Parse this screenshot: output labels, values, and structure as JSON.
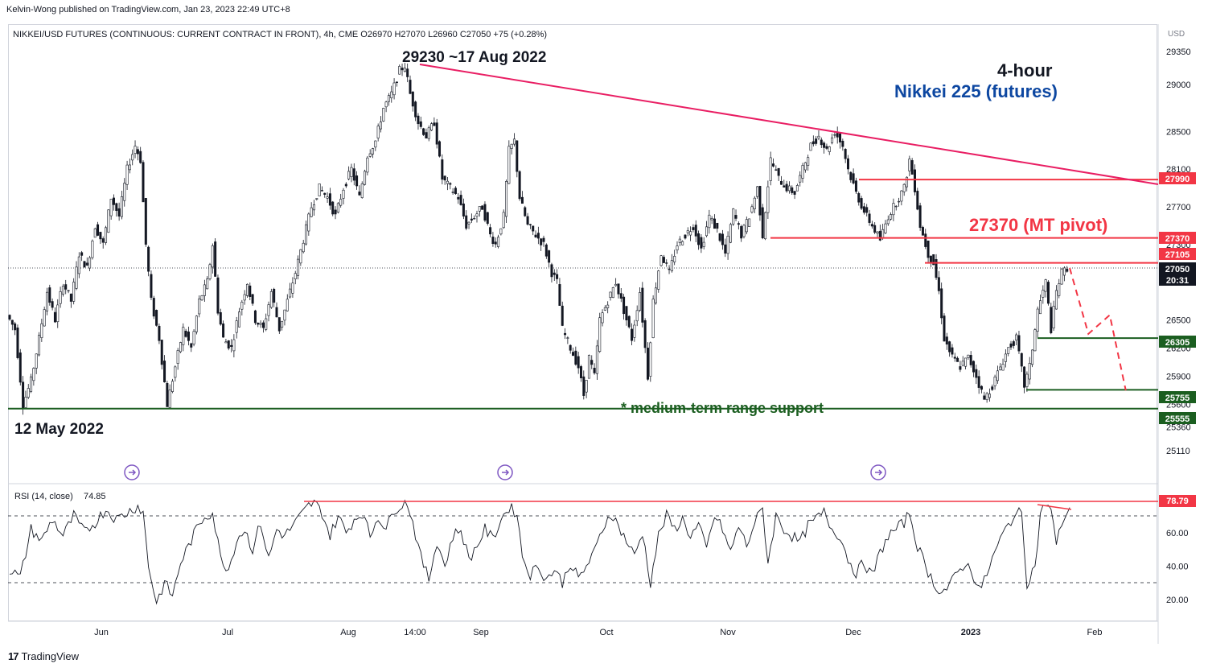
{
  "publisher": "Kelvin-Wong published on TradingView.com, Jan 23, 2023 22:49 UTC+8",
  "footer": {
    "logo_text": "TradingView",
    "logo_mark": "17"
  },
  "colors": {
    "candle": "#131722",
    "resistance": "#f23645",
    "trendline": "#e91e63",
    "support": "#1b5e20",
    "annotation_blue": "#0d47a1",
    "rsi_line": "#131722",
    "event_icon": "#7e57c2"
  },
  "chart_data": [
    {
      "type": "candlestick",
      "symbol_line": "NIKKEI/USD FUTURES (CONTINUOUS: CURRENT CONTRACT IN FRONT), 4h, CME  O26970  H27070  L26960  C27050  +75 (+0.28%)",
      "currency": "USD",
      "timeframe_label": "4-hour",
      "instrument_label": "Nikkei 225 (futures)",
      "y_ticks": [
        29350,
        29000,
        28500,
        28100,
        27700,
        27300,
        26500,
        26200,
        25900,
        25600,
        25360,
        25110
      ],
      "x_ticks": [
        "Jun",
        "Jul",
        "Aug",
        "14:00",
        "Sep",
        "Oct",
        "Nov",
        "Dec",
        "2023",
        "Feb"
      ],
      "price_labels": [
        {
          "value": "27990",
          "color": "#f23645"
        },
        {
          "value": "27370",
          "color": "#f23645"
        },
        {
          "value": "27105",
          "color": "#f23645"
        },
        {
          "value": "27050",
          "color": "#131722"
        },
        {
          "value": "20:31",
          "color": "#131722"
        },
        {
          "value": "26305",
          "color": "#1b5e20"
        },
        {
          "value": "25755",
          "color": "#1b5e20"
        },
        {
          "value": "25555",
          "color": "#1b5e20"
        }
      ],
      "close_path": [
        [
          0,
          26550
        ],
        [
          3,
          26400
        ],
        [
          6,
          25600
        ],
        [
          9,
          25850
        ],
        [
          12,
          26300
        ],
        [
          15,
          26800
        ],
        [
          18,
          26500
        ],
        [
          21,
          26900
        ],
        [
          24,
          26700
        ],
        [
          27,
          27200
        ],
        [
          30,
          27050
        ],
        [
          33,
          27500
        ],
        [
          36,
          27300
        ],
        [
          39,
          27800
        ],
        [
          42,
          27600
        ],
        [
          45,
          28100
        ],
        [
          48,
          28350
        ],
        [
          50,
          28200
        ],
        [
          52,
          27300
        ],
        [
          54,
          26700
        ],
        [
          57,
          26300
        ],
        [
          60,
          25600
        ],
        [
          63,
          26000
        ],
        [
          66,
          26400
        ],
        [
          69,
          26200
        ],
        [
          72,
          26700
        ],
        [
          75,
          26900
        ],
        [
          77,
          27300
        ],
        [
          79,
          26600
        ],
        [
          81,
          26300
        ],
        [
          84,
          26200
        ],
        [
          87,
          26600
        ],
        [
          90,
          26900
        ],
        [
          93,
          26500
        ],
        [
          96,
          26400
        ],
        [
          99,
          26800
        ],
        [
          102,
          26400
        ],
        [
          105,
          26700
        ],
        [
          108,
          27000
        ],
        [
          111,
          27350
        ],
        [
          114,
          27700
        ],
        [
          117,
          27900
        ],
        [
          120,
          27800
        ],
        [
          123,
          27600
        ],
        [
          126,
          27900
        ],
        [
          129,
          28100
        ],
        [
          132,
          27800
        ],
        [
          135,
          28250
        ],
        [
          138,
          28400
        ],
        [
          141,
          28750
        ],
        [
          144,
          28900
        ],
        [
          147,
          29150
        ],
        [
          149,
          29200
        ],
        [
          151,
          28900
        ],
        [
          154,
          28600
        ],
        [
          157,
          28450
        ],
        [
          160,
          28600
        ],
        [
          163,
          28000
        ],
        [
          166,
          27900
        ],
        [
          169,
          27800
        ],
        [
          172,
          27500
        ],
        [
          175,
          27600
        ],
        [
          178,
          27700
        ],
        [
          181,
          27400
        ],
        [
          183,
          27300
        ],
        [
          186,
          27600
        ],
        [
          188,
          28300
        ],
        [
          190,
          28400
        ],
        [
          192,
          27800
        ],
        [
          195,
          27500
        ],
        [
          198,
          27400
        ],
        [
          201,
          27300
        ],
        [
          204,
          27000
        ],
        [
          206,
          26900
        ],
        [
          208,
          26400
        ],
        [
          211,
          26200
        ],
        [
          214,
          26000
        ],
        [
          216,
          25700
        ],
        [
          218,
          26100
        ],
        [
          220,
          25900
        ],
        [
          222,
          26500
        ],
        [
          225,
          26700
        ],
        [
          228,
          26900
        ],
        [
          231,
          26600
        ],
        [
          234,
          26300
        ],
        [
          237,
          26800
        ],
        [
          240,
          25900
        ],
        [
          242,
          26700
        ],
        [
          245,
          27200
        ],
        [
          248,
          27000
        ],
        [
          251,
          27300
        ],
        [
          254,
          27400
        ],
        [
          257,
          27500
        ],
        [
          260,
          27250
        ],
        [
          263,
          27600
        ],
        [
          266,
          27450
        ],
        [
          269,
          27200
        ],
        [
          272,
          27650
        ],
        [
          275,
          27400
        ],
        [
          278,
          27600
        ],
        [
          281,
          27900
        ],
        [
          283,
          27400
        ],
        [
          286,
          28200
        ],
        [
          289,
          28000
        ],
        [
          292,
          27900
        ],
        [
          295,
          27850
        ],
        [
          298,
          28100
        ],
        [
          301,
          28350
        ],
        [
          304,
          28450
        ],
        [
          307,
          28300
        ],
        [
          310,
          28500
        ],
        [
          313,
          28350
        ],
        [
          315,
          28100
        ],
        [
          318,
          27850
        ],
        [
          321,
          27650
        ],
        [
          324,
          27500
        ],
        [
          327,
          27350
        ],
        [
          330,
          27600
        ],
        [
          333,
          27750
        ],
        [
          336,
          27900
        ],
        [
          338,
          28200
        ],
        [
          340,
          27900
        ],
        [
          342,
          27500
        ],
        [
          345,
          27200
        ],
        [
          347,
          27100
        ],
        [
          349,
          26800
        ],
        [
          351,
          26300
        ],
        [
          354,
          26100
        ],
        [
          357,
          26000
        ],
        [
          360,
          26100
        ],
        [
          363,
          25900
        ],
        [
          366,
          25650
        ],
        [
          369,
          25800
        ],
        [
          372,
          26000
        ],
        [
          375,
          26200
        ],
        [
          378,
          26300
        ],
        [
          381,
          25800
        ],
        [
          383,
          26000
        ],
        [
          386,
          26600
        ],
        [
          389,
          26900
        ],
        [
          391,
          26400
        ],
        [
          393,
          26800
        ],
        [
          395,
          27000
        ],
        [
          397,
          27050
        ]
      ],
      "levels": [
        {
          "value": 27990,
          "label": "27990"
        },
        {
          "value": 27370,
          "label": "27370 (MT pivot)"
        },
        {
          "value": 27105,
          "label": "27105"
        },
        {
          "value": 26305,
          "label": "26305"
        },
        {
          "value": 25755,
          "label": "25755"
        },
        {
          "value": 25555,
          "label": "25555"
        }
      ],
      "projection_path": [
        [
          397,
          27050
        ],
        [
          404,
          26350
        ],
        [
          412,
          26550
        ],
        [
          418,
          25750
        ]
      ],
      "annotations": {
        "high_label": "29230 ~17 Aug 2022",
        "low_label": "12 May 2022",
        "pivot_label": "27370 (MT pivot)",
        "support_label": "* medium-term range support"
      }
    },
    {
      "type": "line",
      "title": "RSI (14, close)",
      "value": "74.85",
      "y_ticks": [
        "60.00",
        "40.00",
        "20.00"
      ],
      "upper_band": 70,
      "lower_band": 30,
      "marker_label": "78.79",
      "path": [
        [
          0,
          38
        ],
        [
          4,
          33
        ],
        [
          8,
          62
        ],
        [
          12,
          55
        ],
        [
          16,
          68
        ],
        [
          20,
          58
        ],
        [
          24,
          70
        ],
        [
          28,
          60
        ],
        [
          32,
          66
        ],
        [
          36,
          74
        ],
        [
          40,
          68
        ],
        [
          44,
          72
        ],
        [
          48,
          76
        ],
        [
          50,
          72
        ],
        [
          52,
          40
        ],
        [
          55,
          18
        ],
        [
          58,
          30
        ],
        [
          61,
          22
        ],
        [
          64,
          42
        ],
        [
          67,
          52
        ],
        [
          70,
          62
        ],
        [
          73,
          70
        ],
        [
          76,
          72
        ],
        [
          79,
          45
        ],
        [
          82,
          38
        ],
        [
          85,
          56
        ],
        [
          88,
          62
        ],
        [
          91,
          50
        ],
        [
          94,
          66
        ],
        [
          97,
          44
        ],
        [
          100,
          62
        ],
        [
          103,
          58
        ],
        [
          106,
          64
        ],
        [
          109,
          70
        ],
        [
          112,
          76
        ],
        [
          114,
          78
        ],
        [
          117,
          72
        ],
        [
          120,
          58
        ],
        [
          123,
          70
        ],
        [
          126,
          60
        ],
        [
          129,
          68
        ],
        [
          132,
          72
        ],
        [
          135,
          58
        ],
        [
          138,
          70
        ],
        [
          141,
          62
        ],
        [
          144,
          74
        ],
        [
          147,
          77
        ],
        [
          149,
          78
        ],
        [
          151,
          66
        ],
        [
          154,
          45
        ],
        [
          157,
          32
        ],
        [
          160,
          55
        ],
        [
          163,
          40
        ],
        [
          166,
          58
        ],
        [
          169,
          62
        ],
        [
          172,
          44
        ],
        [
          175,
          52
        ],
        [
          178,
          62
        ],
        [
          181,
          56
        ],
        [
          184,
          68
        ],
        [
          187,
          75
        ],
        [
          190,
          72
        ],
        [
          192,
          46
        ],
        [
          195,
          35
        ],
        [
          198,
          40
        ],
        [
          201,
          32
        ],
        [
          204,
          38
        ],
        [
          207,
          30
        ],
        [
          210,
          42
        ],
        [
          213,
          32
        ],
        [
          216,
          40
        ],
        [
          219,
          48
        ],
        [
          222,
          62
        ],
        [
          225,
          72
        ],
        [
          228,
          64
        ],
        [
          231,
          55
        ],
        [
          234,
          46
        ],
        [
          237,
          60
        ],
        [
          240,
          30
        ],
        [
          243,
          58
        ],
        [
          246,
          70
        ],
        [
          249,
          62
        ],
        [
          252,
          68
        ],
        [
          255,
          58
        ],
        [
          258,
          64
        ],
        [
          261,
          50
        ],
        [
          264,
          70
        ],
        [
          267,
          62
        ],
        [
          270,
          48
        ],
        [
          273,
          64
        ],
        [
          276,
          52
        ],
        [
          279,
          66
        ],
        [
          282,
          74
        ],
        [
          284,
          42
        ],
        [
          287,
          70
        ],
        [
          290,
          62
        ],
        [
          293,
          58
        ],
        [
          296,
          54
        ],
        [
          299,
          64
        ],
        [
          302,
          68
        ],
        [
          305,
          72
        ],
        [
          308,
          62
        ],
        [
          311,
          58
        ],
        [
          314,
          44
        ],
        [
          317,
          36
        ],
        [
          320,
          42
        ],
        [
          323,
          34
        ],
        [
          326,
          48
        ],
        [
          329,
          58
        ],
        [
          332,
          62
        ],
        [
          335,
          66
        ],
        [
          337,
          72
        ],
        [
          340,
          52
        ],
        [
          343,
          40
        ],
        [
          346,
          30
        ],
        [
          349,
          24
        ],
        [
          352,
          28
        ],
        [
          355,
          36
        ],
        [
          358,
          42
        ],
        [
          361,
          34
        ],
        [
          364,
          26
        ],
        [
          367,
          40
        ],
        [
          370,
          52
        ],
        [
          373,
          62
        ],
        [
          376,
          70
        ],
        [
          379,
          72
        ],
        [
          381,
          30
        ],
        [
          384,
          40
        ],
        [
          386,
          70
        ],
        [
          388,
          78
        ],
        [
          390,
          74
        ],
        [
          392,
          52
        ],
        [
          394,
          66
        ],
        [
          397,
          75
        ]
      ]
    }
  ]
}
